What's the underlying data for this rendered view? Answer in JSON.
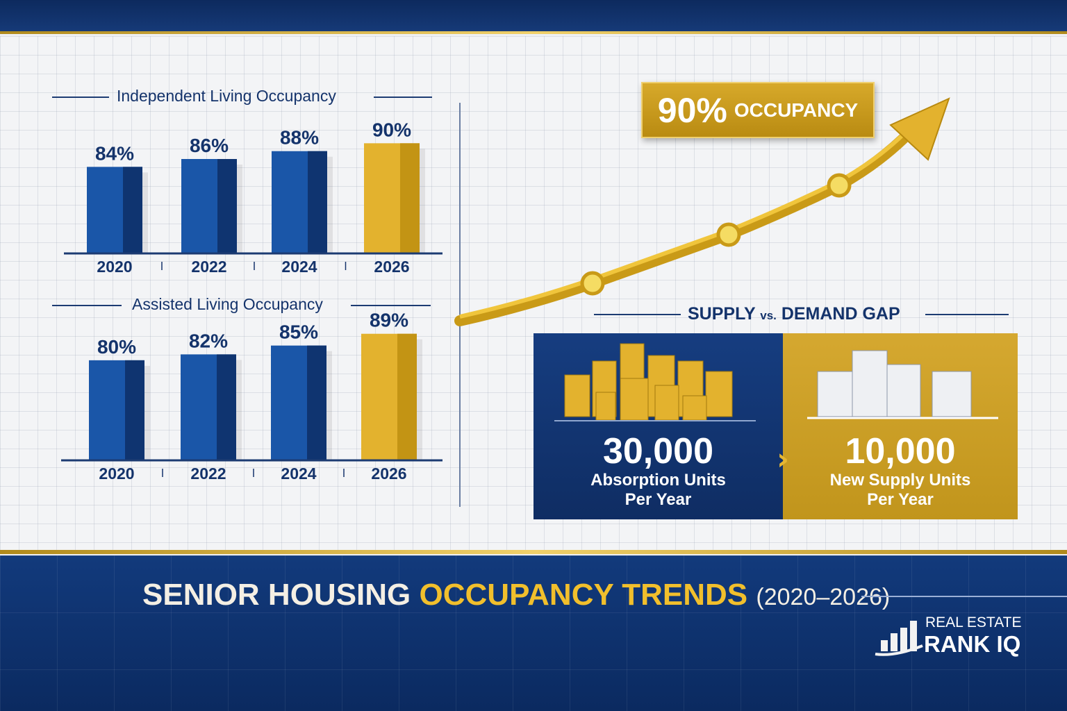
{
  "colors": {
    "navy": "#14336b",
    "blue": "#1a56a8",
    "gold": "#e0b42c"
  },
  "chart_data": [
    {
      "type": "bar",
      "title": "Independent Living Occupancy",
      "categories": [
        "2020",
        "2022",
        "2024",
        "2026"
      ],
      "values": [
        84,
        86,
        88,
        90
      ],
      "labels": [
        "84%",
        "86%",
        "88%",
        "90%"
      ],
      "highlight": "2026",
      "ylim": [
        62,
        92
      ],
      "grid": true
    },
    {
      "type": "bar",
      "title": "Assisted Living Occupancy",
      "categories": [
        "2020",
        "2022",
        "2024",
        "2026"
      ],
      "values": [
        80,
        82,
        85,
        89
      ],
      "labels": [
        "80%",
        "82%",
        "85%",
        "89%"
      ],
      "highlight": "2026",
      "ylim": [
        46,
        92
      ],
      "grid": true
    },
    {
      "type": "line",
      "title": "",
      "annotation": {
        "value": "90%",
        "label": "OCCUPANCY"
      },
      "trend": "rising",
      "markers": 3
    }
  ],
  "gap": {
    "title_a": "SUPPLY",
    "vs": "vs.",
    "title_b": "DEMAND GAP",
    "demand": {
      "value": "30,000",
      "label1": "Absorption Units",
      "label2": "Per Year"
    },
    "supply": {
      "value": "10,000",
      "label1": "New Supply Units",
      "label2": "Per Year"
    }
  },
  "footer": {
    "title_a": "SENIOR HOUSING",
    "title_b": "OCCUPANCY TRENDS",
    "years": "(2020–2026)"
  },
  "logo": {
    "line1": "REAL ESTATE",
    "line2": "RANK IQ"
  }
}
